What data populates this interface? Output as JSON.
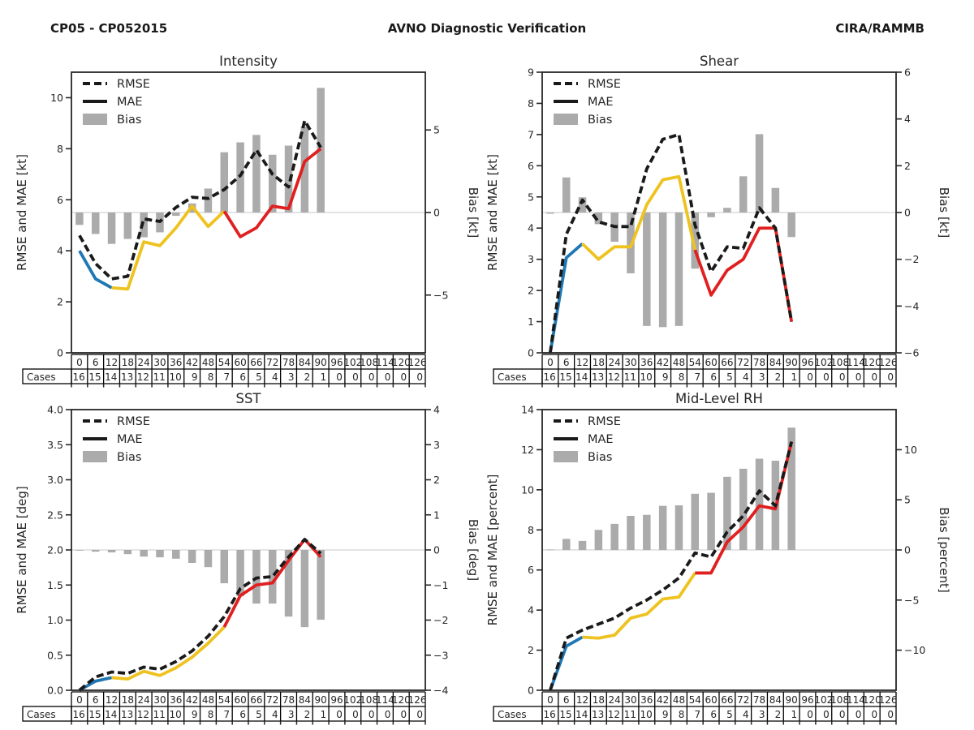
{
  "header": {
    "left": "CP05 - CP052015",
    "center": "AVNO Diagnostic Verification",
    "right": "CIRA/RAMMB"
  },
  "legend": {
    "rmse": "RMSE",
    "mae": "MAE",
    "bias": "Bias"
  },
  "colors": {
    "rmse_line": "#1a1a1a",
    "mae_blue": "#1f77b4",
    "mae_yellow": "#eec21f",
    "mae_red": "#e02020",
    "bias_bar": "#ababab",
    "zero_line": "#c9c9c9",
    "axis": "#262626",
    "table_line": "#000000"
  },
  "x_axis": {
    "hours": [
      0,
      6,
      12,
      18,
      24,
      30,
      36,
      42,
      48,
      54,
      60,
      66,
      72,
      78,
      84,
      90,
      96,
      102,
      108,
      114,
      120,
      126
    ],
    "cases_label": "Cases",
    "cases": [
      16,
      15,
      14,
      13,
      12,
      11,
      10,
      9,
      8,
      7,
      6,
      5,
      4,
      3,
      2,
      1,
      0,
      0,
      0,
      0,
      0,
      0
    ]
  },
  "mae_segments": [
    {
      "color_key": "mae_blue",
      "start": 0,
      "end": 2
    },
    {
      "color_key": "mae_yellow",
      "start": 2,
      "end": 9
    },
    {
      "color_key": "mae_red",
      "start": 9,
      "end": 15
    }
  ],
  "chart_data": [
    {
      "id": "intensity",
      "type": "line+bar",
      "title": "Intensity",
      "ylabel_left": "RMSE and MAE [kt]",
      "ylabel_right": "Bias [kt]",
      "legend_position": "upper-left",
      "grid": "zero-line-only",
      "x": [
        0,
        6,
        12,
        18,
        24,
        30,
        36,
        42,
        48,
        54,
        60,
        66,
        72,
        78,
        84,
        90
      ],
      "ylim_left": [
        0,
        11
      ],
      "yticks_left": [
        "0",
        "2",
        "4",
        "6",
        "8",
        "10"
      ],
      "ylim_right": [
        -8.5,
        8.5
      ],
      "yticks_right": [
        "−5",
        "0",
        "5"
      ],
      "series": [
        {
          "name": "RMSE",
          "values": [
            4.6,
            3.5,
            2.9,
            3.0,
            5.25,
            5.15,
            5.7,
            6.1,
            6.05,
            6.4,
            6.95,
            7.95,
            7.0,
            6.5,
            9.1,
            8.05
          ]
        },
        {
          "name": "MAE",
          "values": [
            4.0,
            2.9,
            2.55,
            2.5,
            4.35,
            4.2,
            4.9,
            5.75,
            4.95,
            5.55,
            4.55,
            4.9,
            5.75,
            5.65,
            7.5,
            8.0
          ]
        },
        {
          "name": "Bias",
          "values": [
            -0.75,
            -1.3,
            -1.9,
            -1.6,
            -1.5,
            -1.2,
            -0.2,
            0.55,
            1.45,
            3.65,
            4.25,
            4.7,
            3.5,
            4.05,
            5.2,
            7.55
          ]
        }
      ]
    },
    {
      "id": "shear",
      "type": "line+bar",
      "title": "Shear",
      "ylabel_left": "RMSE and MAE [kt]",
      "ylabel_right": "Bias [kt]",
      "legend_position": "upper-left",
      "grid": "zero-line-only",
      "x": [
        0,
        6,
        12,
        18,
        24,
        30,
        36,
        42,
        48,
        54,
        60,
        66,
        72,
        78,
        84,
        90
      ],
      "ylim_left": [
        0,
        9
      ],
      "yticks_left": [
        "0",
        "1",
        "2",
        "3",
        "4",
        "5",
        "6",
        "7",
        "8",
        "9"
      ],
      "ylim_right": [
        -6,
        6
      ],
      "yticks_right": [
        "−6",
        "−4",
        "−2",
        "0",
        "2",
        "4",
        "6"
      ],
      "series": [
        {
          "name": "RMSE",
          "values": [
            0.0,
            3.8,
            4.9,
            4.2,
            4.05,
            4.05,
            5.9,
            6.85,
            7.0,
            4.1,
            2.6,
            3.4,
            3.35,
            4.65,
            4.0,
            1.0
          ]
        },
        {
          "name": "MAE",
          "values": [
            0.0,
            3.05,
            3.5,
            3.0,
            3.4,
            3.4,
            4.75,
            5.55,
            5.65,
            3.3,
            1.85,
            2.65,
            3.0,
            4.0,
            4.0,
            1.0
          ]
        },
        {
          "name": "Bias",
          "values": [
            -0.05,
            1.5,
            0.65,
            -0.5,
            -1.25,
            -2.6,
            -4.85,
            -4.9,
            -4.85,
            -2.4,
            -0.2,
            0.2,
            1.55,
            3.35,
            1.05,
            -1.05
          ]
        }
      ]
    },
    {
      "id": "sst",
      "type": "line+bar",
      "title": "SST",
      "ylabel_left": "RMSE and MAE [deg]",
      "ylabel_right": "Bias [deg]",
      "legend_position": "upper-left",
      "grid": "zero-line-only",
      "x": [
        0,
        6,
        12,
        18,
        24,
        30,
        36,
        42,
        48,
        54,
        60,
        66,
        72,
        78,
        84,
        90
      ],
      "ylim_left": [
        0,
        4
      ],
      "yticks_left": [
        "0.0",
        "0.5",
        "1.0",
        "1.5",
        "2.0",
        "2.5",
        "3.0",
        "3.5",
        "4.0"
      ],
      "ylim_right": [
        -4,
        4
      ],
      "yticks_right": [
        "−4",
        "−3",
        "−2",
        "−1",
        "0",
        "1",
        "2",
        "3",
        "4"
      ],
      "series": [
        {
          "name": "RMSE",
          "values": [
            0.0,
            0.19,
            0.26,
            0.24,
            0.33,
            0.3,
            0.41,
            0.56,
            0.77,
            1.05,
            1.45,
            1.6,
            1.62,
            1.9,
            2.15,
            1.95
          ]
        },
        {
          "name": "MAE",
          "values": [
            0.0,
            0.13,
            0.18,
            0.16,
            0.27,
            0.21,
            0.32,
            0.47,
            0.67,
            0.9,
            1.35,
            1.5,
            1.53,
            1.85,
            2.15,
            1.9
          ]
        },
        {
          "name": "Bias",
          "values": [
            -0.02,
            -0.05,
            -0.07,
            -0.12,
            -0.19,
            -0.21,
            -0.25,
            -0.37,
            -0.49,
            -0.95,
            -1.32,
            -1.53,
            -1.53,
            -1.9,
            -2.2,
            -1.99
          ]
        }
      ]
    },
    {
      "id": "midrh",
      "type": "line+bar",
      "title": "Mid-Level RH",
      "ylabel_left": "RMSE and MAE [percent]",
      "ylabel_right": "Bias [percent]",
      "legend_position": "upper-left",
      "grid": "zero-line-only",
      "x": [
        0,
        6,
        12,
        18,
        24,
        30,
        36,
        42,
        48,
        54,
        60,
        66,
        72,
        78,
        84,
        90
      ],
      "ylim_left": [
        0,
        14
      ],
      "yticks_left": [
        "0",
        "2",
        "4",
        "6",
        "8",
        "10",
        "12",
        "14"
      ],
      "ylim_right": [
        -14,
        14
      ],
      "yticks_right": [
        "−10",
        "−5",
        "0",
        "5",
        "10"
      ],
      "series": [
        {
          "name": "RMSE",
          "values": [
            0.0,
            2.6,
            3.0,
            3.3,
            3.6,
            4.1,
            4.5,
            5.0,
            5.6,
            6.85,
            6.65,
            7.9,
            8.7,
            9.95,
            9.2,
            12.4
          ]
        },
        {
          "name": "MAE",
          "values": [
            0.0,
            2.2,
            2.65,
            2.6,
            2.75,
            3.6,
            3.8,
            4.55,
            4.65,
            5.85,
            5.85,
            7.4,
            8.15,
            9.2,
            9.05,
            12.4
          ]
        },
        {
          "name": "Bias",
          "values": [
            0.05,
            1.1,
            0.9,
            2.0,
            2.6,
            3.4,
            3.5,
            4.4,
            4.45,
            5.6,
            5.7,
            7.3,
            8.1,
            9.1,
            8.9,
            12.2
          ]
        }
      ]
    }
  ]
}
